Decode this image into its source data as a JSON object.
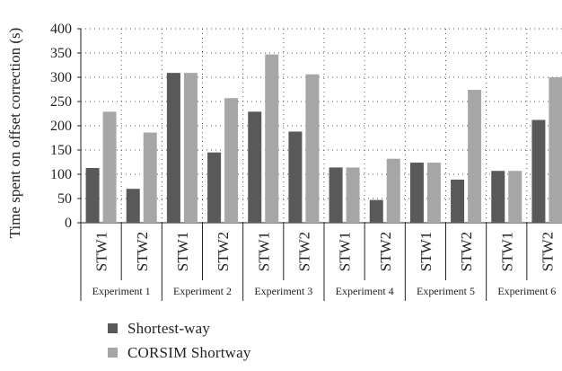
{
  "chart_data": {
    "type": "bar",
    "ylabel": "Time spent on offset correction (s)",
    "ylim": [
      0,
      400
    ],
    "yticks": [
      0,
      50,
      100,
      150,
      200,
      250,
      300,
      350,
      400
    ],
    "grid": true,
    "legend_position": "bottom-left",
    "colors": {
      "Shortest-way": "#595959",
      "CORSIM Shortway": "#a6a6a6"
    },
    "groups": [
      "Experiment 1",
      "Experiment 2",
      "Experiment 3",
      "Experiment 4",
      "Experiment 5",
      "Experiment 6"
    ],
    "categories": [
      "STW1",
      "STW2",
      "STW1",
      "STW2",
      "STW1",
      "STW2",
      "STW1",
      "STW2",
      "STW1",
      "STW2",
      "STW1",
      "STW2"
    ],
    "series": [
      {
        "name": "Shortest-way",
        "values": [
          113,
          70,
          309,
          145,
          229,
          188,
          114,
          47,
          124,
          89,
          107,
          212
        ]
      },
      {
        "name": "CORSIM Shortway",
        "values": [
          229,
          186,
          309,
          257,
          347,
          306,
          114,
          132,
          124,
          274,
          107,
          300
        ]
      }
    ]
  }
}
